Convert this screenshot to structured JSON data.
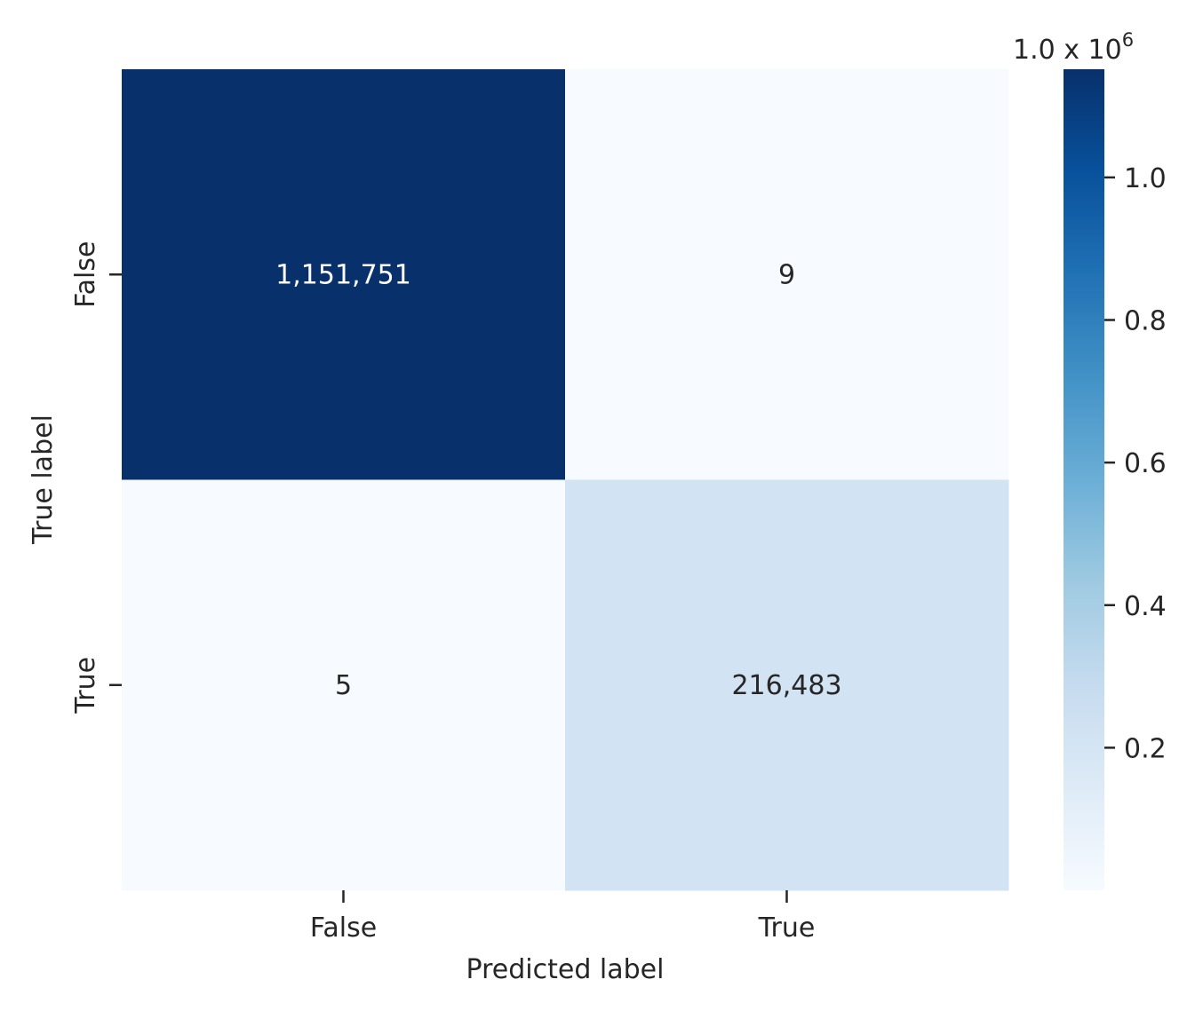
{
  "chart_data": {
    "type": "heatmap",
    "title": "",
    "xlabel": "Predicted label",
    "ylabel": "True label",
    "x_categories": [
      "False",
      "True"
    ],
    "y_categories": [
      "False",
      "True"
    ],
    "matrix": [
      [
        1151751,
        9
      ],
      [
        5,
        216483
      ]
    ],
    "cell_labels": [
      [
        "1,151,751",
        "9"
      ],
      [
        "5",
        "216,483"
      ]
    ],
    "colormap": "Blues",
    "color_range": [
      5,
      1151751
    ],
    "colorbar": {
      "ticks": [
        0.2,
        0.4,
        0.6,
        0.8,
        1.0
      ],
      "tick_labels": [
        "0.2",
        "0.4",
        "0.6",
        "0.8",
        "1.0"
      ],
      "offset_base": "1.0 x 10",
      "offset_exp": "6",
      "multiplier": 1000000
    }
  }
}
